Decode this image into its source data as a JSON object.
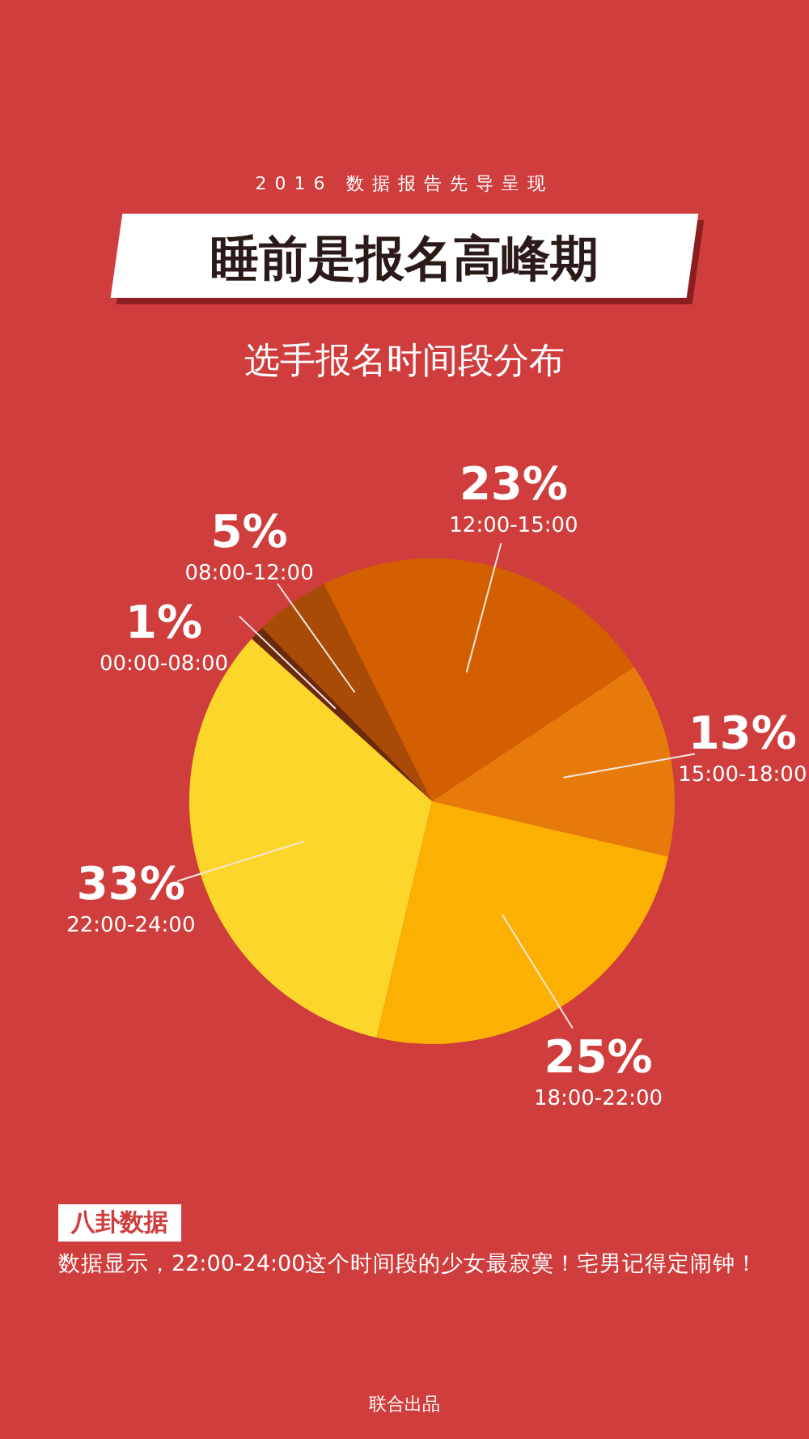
{
  "chart_data": {
    "type": "pie",
    "title": "睡前是报名高峰期",
    "subtitle": "选手报名时间段分布",
    "categories": [
      "00:00-08:00",
      "08:00-12:00",
      "12:00-15:00",
      "15:00-18:00",
      "18:00-22:00",
      "22:00-24:00"
    ],
    "values": [
      1,
      5,
      23,
      13,
      25,
      33
    ],
    "value_labels": [
      "1%",
      "5%",
      "23%",
      "13%",
      "25%",
      "33%"
    ],
    "colors": [
      "#6b2a0c",
      "#a84b06",
      "#d35f00",
      "#e67b0b",
      "#fcb102",
      "#fdd62c"
    ],
    "legend": false,
    "annotations": [
      "2016 数据报告先导呈现",
      "八卦数据",
      "数据显示，22:00-24:00这个时间段的少女最寂寞！宅男记得定闹钟！",
      "联合出品"
    ]
  }
}
